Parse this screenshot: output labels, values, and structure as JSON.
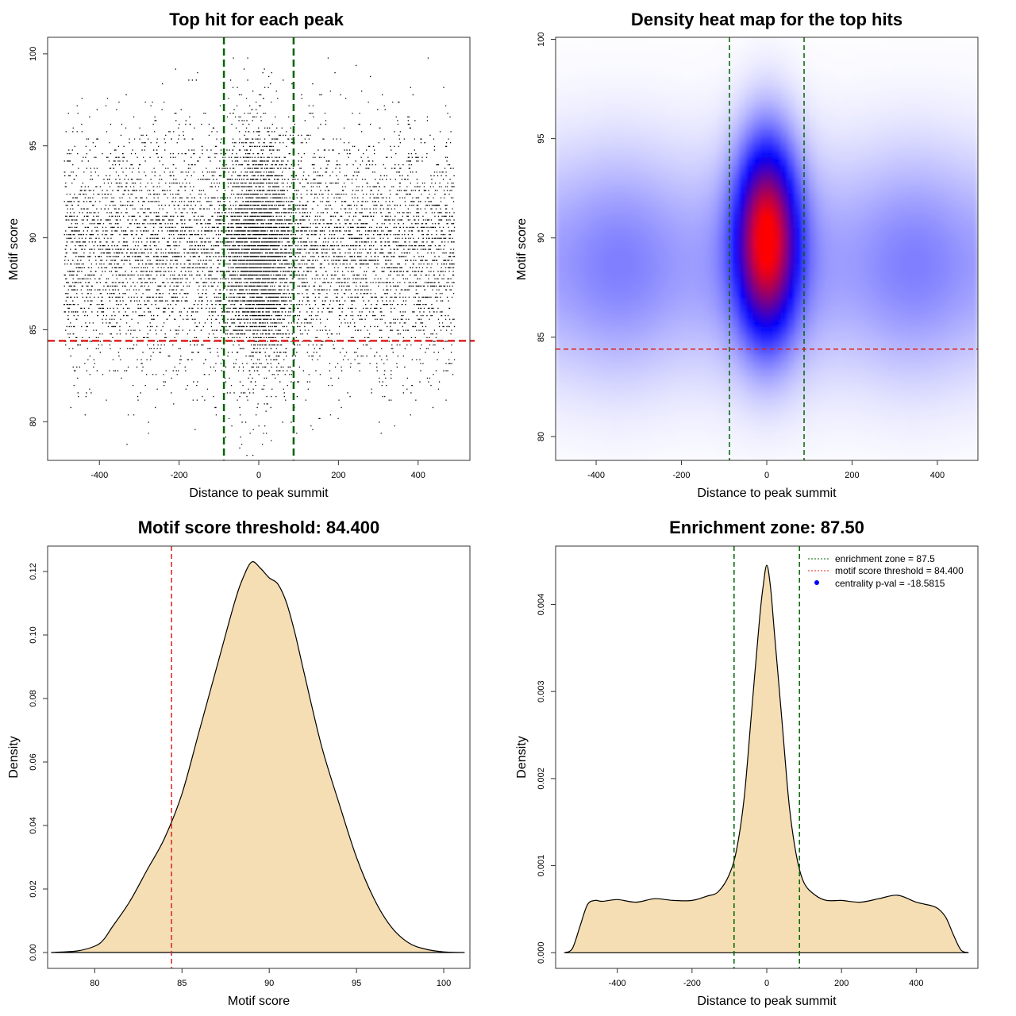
{
  "colors": {
    "threshold_line": "#dd2222",
    "zone_line": "#006400",
    "points": "#000000",
    "density_fill": "#f5deb3",
    "heat_low": "#ffffff",
    "heat_mid": "#0000ff",
    "heat_high": "#ff0000",
    "legend_marker": "#0000ff"
  },
  "chart_data": [
    {
      "type": "scatter",
      "title": "Top hit for each peak",
      "xlabel": "Distance to peak summit",
      "ylabel": "Motif score",
      "xlim": [
        -530,
        530
      ],
      "ylim": [
        77.9,
        100.9
      ],
      "xticks": [
        -400,
        -200,
        0,
        200,
        400
      ],
      "yticks": [
        80,
        85,
        90,
        95,
        100
      ],
      "threshold_y": 84.4,
      "zone_x": [
        -87.5,
        87.5
      ],
      "point_count": 10000,
      "distribution": {
        "x_range": [
          -490,
          490
        ],
        "center_fraction": 0.3,
        "center_sd_x": 45,
        "y_mean": 89.3,
        "y_sd": 3.2
      }
    },
    {
      "type": "heatmap",
      "title": "Density heat map for the top hits",
      "xlabel": "Distance to peak summit",
      "ylabel": "Motif score",
      "xlim": [
        -495,
        495
      ],
      "ylim": [
        78.8,
        100.1
      ],
      "xticks": [
        -400,
        -200,
        0,
        200,
        400
      ],
      "yticks": [
        80,
        85,
        90,
        95,
        100
      ],
      "threshold_y": 84.4,
      "zone_x": [
        -87.5,
        87.5
      ],
      "peak": {
        "x": 0,
        "y": 90,
        "sd_x": 45,
        "sd_y": 3
      },
      "background": {
        "y_mean": 88.7,
        "sd_y": 3.5
      }
    },
    {
      "type": "area",
      "title": "Motif score threshold: 84.400",
      "xlabel": "Motif score",
      "ylabel": "Density",
      "xlim": [
        77.3,
        101.5
      ],
      "ylim": [
        -0.005,
        0.128
      ],
      "xticks": [
        80,
        85,
        90,
        95,
        100
      ],
      "yticks": [
        0.0,
        0.02,
        0.04,
        0.06,
        0.08,
        0.1,
        0.12
      ],
      "ytick_labels": [
        "0.00",
        "0.02",
        "0.04",
        "0.06",
        "0.08",
        "0.10",
        "0.12"
      ],
      "threshold_x": 84.4,
      "x": [
        77.5,
        79.0,
        80.0,
        80.5,
        81.0,
        82.0,
        83.0,
        84.0,
        85.0,
        86.0,
        87.0,
        88.0,
        88.5,
        89.0,
        89.5,
        90.0,
        90.5,
        91.0,
        91.5,
        92.0,
        93.0,
        94.0,
        95.0,
        96.0,
        97.0,
        98.0,
        99.0,
        100.0,
        101.2
      ],
      "y": [
        0.0,
        0.0005,
        0.002,
        0.004,
        0.008,
        0.016,
        0.026,
        0.036,
        0.05,
        0.07,
        0.09,
        0.11,
        0.118,
        0.123,
        0.121,
        0.118,
        0.116,
        0.11,
        0.1,
        0.088,
        0.065,
        0.047,
        0.03,
        0.017,
        0.008,
        0.003,
        0.001,
        0.0002,
        0.0
      ]
    },
    {
      "type": "area",
      "title": "Enrichment zone: 87.50",
      "xlabel": "Distance to peak summit",
      "ylabel": "Density",
      "xlim": [
        -565,
        565
      ],
      "ylim": [
        -0.00018,
        0.00467
      ],
      "xticks": [
        -400,
        -200,
        0,
        200,
        400
      ],
      "yticks": [
        0.0,
        0.001,
        0.002,
        0.003,
        0.004
      ],
      "ytick_labels": [
        "0.000",
        "0.001",
        "0.002",
        "0.003",
        "0.004"
      ],
      "zone_x": [
        -87.5,
        87.5
      ],
      "x": [
        -540,
        -520,
        -500,
        -480,
        -460,
        -440,
        -400,
        -350,
        -300,
        -250,
        -200,
        -160,
        -130,
        -100,
        -80,
        -60,
        -40,
        -20,
        -10,
        0,
        10,
        20,
        40,
        60,
        80,
        100,
        130,
        160,
        200,
        250,
        300,
        350,
        400,
        440,
        460,
        480,
        500,
        520,
        540
      ],
      "y": [
        0.0,
        5e-05,
        0.0003,
        0.00055,
        0.0006,
        0.00059,
        0.00061,
        0.00058,
        0.00062,
        0.0006,
        0.0006,
        0.00065,
        0.0007,
        0.0009,
        0.0012,
        0.0018,
        0.0028,
        0.0038,
        0.0042,
        0.00445,
        0.0042,
        0.0037,
        0.0027,
        0.0017,
        0.0011,
        0.0008,
        0.00066,
        0.0006,
        0.0006,
        0.00058,
        0.00062,
        0.00066,
        0.00058,
        0.00054,
        0.0005,
        0.0004,
        0.0002,
        3e-05,
        0.0
      ],
      "legend": {
        "position": "top-right",
        "entries": [
          {
            "label": "enrichment zone = 87.5",
            "style": "dotted",
            "color": "#006400"
          },
          {
            "label": "motif score threshold = 84.400",
            "style": "dotted",
            "color": "#dd2222"
          },
          {
            "label": "centrality p-val = -18.5815",
            "style": "point",
            "color": "#0000ff"
          }
        ]
      }
    }
  ]
}
